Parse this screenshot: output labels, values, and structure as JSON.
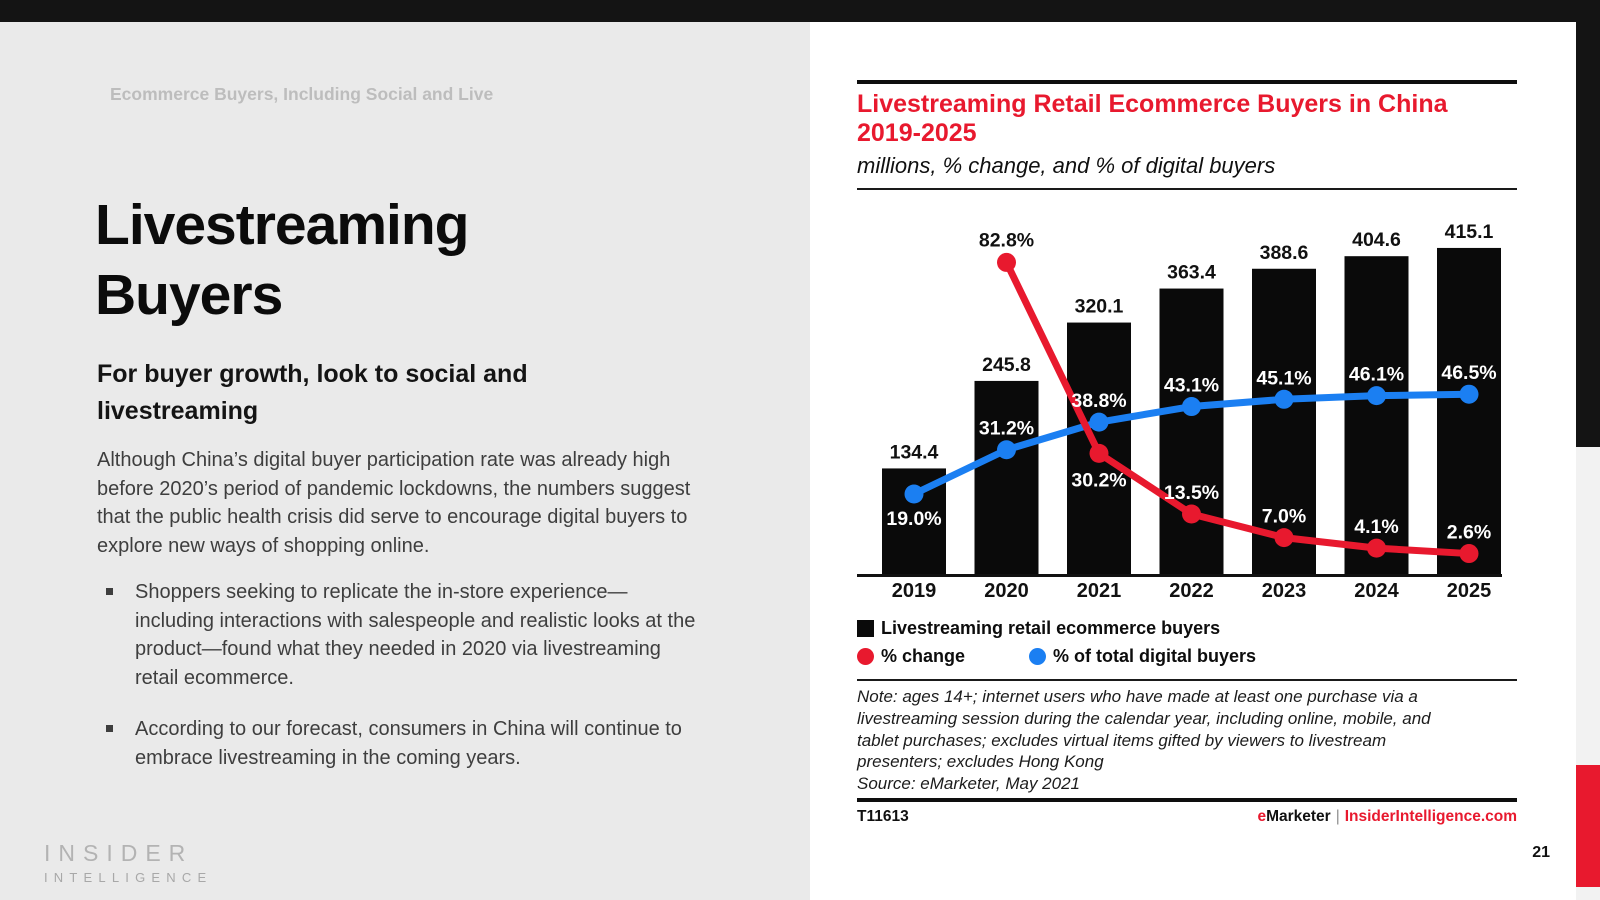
{
  "slide": {
    "eyebrow": "Ecommerce Buyers, Including Social and Live",
    "title_line1": "Livestreaming",
    "title_line2": "Buyers",
    "subheading": "For buyer growth, look to social and livestreaming",
    "intro": "Although China’s digital buyer participation rate was already high before 2020’s period of pandemic lockdowns, the numbers suggest that the public health crisis did serve to encourage digital buyers to explore new ways of shopping online.",
    "bullets": [
      "Shoppers seeking to replicate the in-store experience—including interactions with salespeople and realistic looks at the product—found what they needed in 2020 via livestreaming retail ecommerce.",
      "According to our forecast, consumers in China will continue to embrace livestreaming in the coming years."
    ],
    "logo_line1": "INSIDER",
    "logo_line2": "INTELLIGENCE",
    "page_number": "21"
  },
  "chart": {
    "title_line1": "Livestreaming Retail Ecommerce Buyers in China",
    "title_line2": "2019-2025",
    "subtitle": "millions, % change, and % of digital buyers",
    "legend": {
      "bars": "Livestreaming retail ecommerce buyers",
      "pct_change": "% change",
      "pct_digital": "% of total digital buyers"
    },
    "note_line1": "Note: ages 14+; internet users who have made at least one purchase via a",
    "note_line2": "livestreaming session during the calendar year, including online, mobile, and",
    "note_line3": "tablet purchases; excludes virtual items gifted by viewers to livestream",
    "note_line4": "presenters; excludes Hong Kong",
    "source": "Source: eMarketer, May 2021",
    "chart_id": "T11613",
    "brand": {
      "e": "e",
      "marketer": "Marketer",
      "sep": "|",
      "site": "InsiderIntelligence.com"
    },
    "colors": {
      "red": "#e8192e",
      "blue": "#1b7ff2",
      "bar_black": "#0a0a0a"
    }
  },
  "chart_data": {
    "type": "bar",
    "title": "Livestreaming Retail Ecommerce Buyers in China 2019-2025",
    "subtitle": "millions, % change, and % of digital buyers",
    "categories": [
      "2019",
      "2020",
      "2021",
      "2022",
      "2023",
      "2024",
      "2025"
    ],
    "series": [
      {
        "name": "Livestreaming retail ecommerce buyers",
        "type": "bar",
        "unit": "millions",
        "color": "#0a0a0a",
        "values": [
          134.4,
          245.8,
          320.1,
          363.4,
          388.6,
          404.6,
          415.1
        ]
      },
      {
        "name": "% change",
        "type": "line",
        "unit": "%",
        "color": "#e8192e",
        "values": [
          null,
          82.8,
          30.2,
          13.5,
          7.0,
          4.1,
          2.6
        ]
      },
      {
        "name": "% of total digital buyers",
        "type": "line",
        "unit": "%",
        "color": "#1b7ff2",
        "values": [
          19.0,
          31.2,
          38.8,
          43.1,
          45.1,
          46.1,
          46.5
        ]
      }
    ],
    "xlabel": "",
    "ylabel": "",
    "grid": false,
    "legend_position": "bottom"
  }
}
